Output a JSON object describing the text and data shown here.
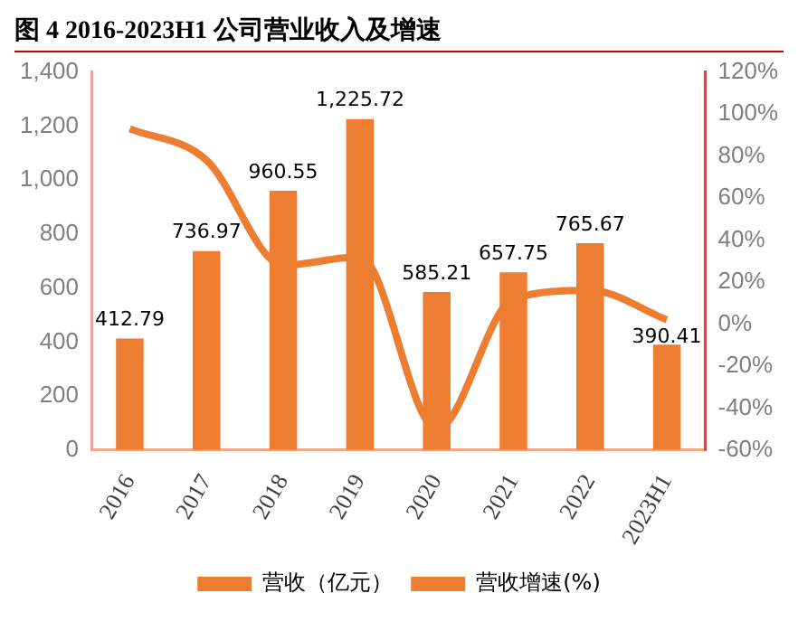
{
  "chart_data": {
    "type": "bar",
    "title": "图 4 2016-2023H1 公司营业收入及增速",
    "categories": [
      "2016",
      "2017",
      "2018",
      "2019",
      "2020",
      "2021",
      "2022",
      "2023H1"
    ],
    "series": [
      {
        "name": "营收（亿元）",
        "color": "#ed7d31",
        "values": [
          412.79,
          736.97,
          960.55,
          1225.72,
          585.21,
          657.75,
          765.67,
          390.41
        ],
        "value_labels": [
          "412.79",
          "736.97",
          "960.55",
          "1,225.72",
          "585.21",
          "657.75",
          "765.67",
          "390.41"
        ]
      },
      {
        "name": "营收增速(%)",
        "type": "line",
        "axis": "y2",
        "color": "#ed7d31",
        "values": [
          93,
          78,
          28,
          32,
          -50,
          12,
          16,
          2
        ]
      }
    ],
    "ylim": [
      0,
      1400
    ],
    "yticks": [
      0,
      {
        "value": 200,
        "label": "200"
      },
      {
        "value": 400,
        "label": "400"
      },
      {
        "value": 600,
        "label": "600"
      },
      {
        "value": 800,
        "label": "800"
      },
      {
        "value": 1000,
        "label": "1,000"
      },
      {
        "value": 1200,
        "label": "1,200"
      },
      {
        "value": 1400,
        "label": "1,400"
      }
    ],
    "y2lim": [
      -60,
      120
    ],
    "y2ticks": [
      {
        "value": -60,
        "label": "-60%"
      },
      {
        "value": -40,
        "label": "-40%"
      },
      {
        "value": -20,
        "label": "-20%"
      },
      {
        "value": 0,
        "label": "0%"
      },
      {
        "value": 20,
        "label": "20%"
      },
      {
        "value": 40,
        "label": "40%"
      },
      {
        "value": 60,
        "label": "60%"
      },
      {
        "value": 80,
        "label": "80%"
      },
      {
        "value": 100,
        "label": "100%"
      },
      {
        "value": 120,
        "label": "120%"
      }
    ],
    "grid": false,
    "legend": "bottom",
    "marker": "none"
  }
}
